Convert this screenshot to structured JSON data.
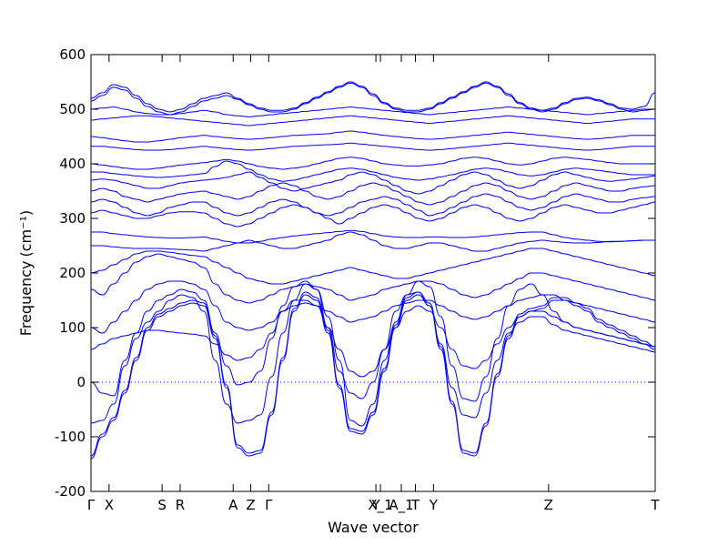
{
  "chart_data": {
    "type": "line",
    "xlabel": "Wave vector",
    "ylabel": "Frequency",
    "ylabel_unit": "(cm⁻¹)",
    "ylim": [
      -200,
      600
    ],
    "yticks": [
      -200,
      -100,
      0,
      100,
      200,
      300,
      400,
      500,
      600
    ],
    "xlim": [
      0,
      1
    ],
    "high_symmetry_points": [
      {
        "label": "Γ",
        "x": 0.0
      },
      {
        "label": "X",
        "x": 0.032
      },
      {
        "label": "S",
        "x": 0.126
      },
      {
        "label": "R",
        "x": 0.158
      },
      {
        "label": "A",
        "x": 0.252
      },
      {
        "label": "Z",
        "x": 0.283
      },
      {
        "label": "Γ",
        "x": 0.315
      },
      {
        "label": "Y",
        "x": 0.505
      },
      {
        "label": "X_1",
        "x": 0.513
      },
      {
        "label": "A_1",
        "x": 0.55
      },
      {
        "label": "T",
        "x": 0.575
      },
      {
        "label": "Y",
        "x": 0.607
      },
      {
        "label": "Z",
        "x": 0.811
      },
      {
        "label": "T",
        "x": 1.0
      }
    ],
    "zero_line": 0,
    "series": [
      {
        "values": [
          -140,
          -100,
          -70,
          -20,
          40,
          95,
          120,
          130,
          140,
          145,
          140,
          80,
          -10,
          -120,
          -135,
          -130,
          -60,
          40,
          130,
          160,
          150,
          90,
          -10,
          -90,
          -95,
          -60,
          20,
          100,
          150,
          160,
          140,
          60,
          -40,
          -130,
          -135,
          -80,
          10,
          80,
          120,
          130,
          135,
          150,
          150,
          140,
          130,
          110,
          100,
          90,
          80,
          70,
          60
        ]
      },
      {
        "values": [
          -135,
          -95,
          -65,
          -15,
          45,
          100,
          125,
          135,
          145,
          150,
          145,
          85,
          -5,
          -115,
          -130,
          -125,
          -55,
          45,
          135,
          165,
          155,
          95,
          -5,
          -85,
          -90,
          -55,
          25,
          105,
          155,
          165,
          145,
          65,
          -35,
          -125,
          -130,
          -75,
          15,
          85,
          125,
          135,
          140,
          155,
          155,
          145,
          135,
          115,
          105,
          95,
          85,
          75,
          65
        ]
      },
      {
        "values": [
          -75,
          -70,
          -40,
          30,
          80,
          110,
          130,
          150,
          160,
          155,
          130,
          40,
          -40,
          -75,
          -70,
          -60,
          10,
          90,
          150,
          180,
          170,
          100,
          20,
          -20,
          -30,
          0,
          60,
          130,
          160,
          165,
          140,
          70,
          -10,
          -60,
          -65,
          -20,
          40,
          90,
          110,
          120,
          120,
          105,
          95,
          90,
          85,
          80,
          75,
          70,
          65,
          60,
          55
        ]
      },
      {
        "values": [
          0,
          -20,
          -25,
          40,
          90,
          130,
          150,
          160,
          170,
          165,
          150,
          90,
          30,
          -5,
          0,
          20,
          80,
          140,
          175,
          185,
          170,
          120,
          40,
          -70,
          -80,
          -40,
          40,
          110,
          160,
          185,
          175,
          120,
          30,
          -30,
          -35,
          10,
          80,
          140,
          170,
          180,
          160,
          130,
          110,
          100,
          95,
          90,
          85,
          80,
          75,
          70,
          65
        ]
      },
      {
        "values": [
          60,
          70,
          80,
          85,
          90,
          95,
          95,
          92,
          90,
          88,
          85,
          70,
          50,
          40,
          45,
          60,
          90,
          130,
          150,
          150,
          140,
          100,
          60,
          20,
          10,
          20,
          60,
          100,
          130,
          140,
          130,
          100,
          60,
          30,
          25,
          40,
          70,
          100,
          120,
          130,
          130,
          120,
          110,
          100,
          95,
          90,
          85,
          80,
          75,
          70,
          65
        ]
      },
      {
        "values": [
          100,
          90,
          110,
          130,
          150,
          170,
          180,
          185,
          185,
          180,
          170,
          140,
          110,
          100,
          95,
          100,
          110,
          130,
          140,
          145,
          140,
          130,
          120,
          110,
          115,
          120,
          130,
          140,
          145,
          150,
          150,
          140,
          130,
          120,
          115,
          120,
          130,
          140,
          150,
          155,
          160,
          160,
          150,
          145,
          140,
          135,
          130,
          125,
          120,
          115,
          110
        ]
      },
      {
        "values": [
          170,
          160,
          180,
          200,
          220,
          230,
          235,
          230,
          225,
          220,
          210,
          180,
          160,
          150,
          145,
          150,
          160,
          170,
          175,
          180,
          175,
          170,
          160,
          150,
          155,
          160,
          170,
          175,
          180,
          185,
          185,
          180,
          170,
          160,
          155,
          160,
          170,
          180,
          190,
          200,
          200,
          195,
          190,
          185,
          180,
          175,
          170,
          165,
          160,
          155,
          150
        ]
      },
      {
        "values": [
          200,
          205,
          215,
          225,
          235,
          240,
          240,
          238,
          235,
          232,
          230,
          220,
          210,
          200,
          190,
          185,
          180,
          180,
          185,
          190,
          195,
          200,
          205,
          210,
          205,
          200,
          195,
          190,
          190,
          195,
          200,
          205,
          210,
          215,
          220,
          225,
          230,
          235,
          240,
          245,
          245,
          240,
          235,
          230,
          225,
          220,
          215,
          210,
          205,
          200,
          195
        ]
      },
      {
        "values": [
          250,
          250,
          248,
          246,
          245,
          245,
          245,
          244,
          243,
          242,
          240,
          245,
          250,
          255,
          260,
          255,
          250,
          245,
          245,
          250,
          255,
          260,
          270,
          275,
          270,
          260,
          250,
          245,
          245,
          250,
          255,
          255,
          250,
          245,
          240,
          240,
          245,
          250,
          255,
          258,
          260,
          258,
          256,
          255,
          255,
          256,
          258,
          258,
          259,
          260,
          260
        ]
      },
      {
        "values": [
          275,
          275,
          272,
          270,
          268,
          266,
          265,
          264,
          264,
          265,
          266,
          262,
          258,
          255,
          255,
          258,
          262,
          265,
          268,
          270,
          272,
          274,
          276,
          278,
          276,
          272,
          268,
          266,
          265,
          265,
          266,
          266,
          265,
          265,
          266,
          268,
          270,
          272,
          274,
          275,
          275,
          270,
          265,
          262,
          260,
          258,
          257,
          258,
          259,
          260,
          260
        ]
      },
      {
        "values": [
          310,
          315,
          310,
          305,
          300,
          300,
          305,
          310,
          312,
          312,
          310,
          300,
          290,
          285,
          290,
          300,
          310,
          320,
          325,
          320,
          310,
          300,
          290,
          300,
          310,
          320,
          325,
          320,
          310,
          300,
          295,
          300,
          310,
          320,
          325,
          320,
          310,
          300,
          295,
          300,
          310,
          320,
          325,
          320,
          315,
          310,
          310,
          315,
          320,
          325,
          330
        ]
      },
      {
        "values": [
          330,
          335,
          330,
          320,
          310,
          305,
          310,
          320,
          325,
          330,
          330,
          320,
          310,
          305,
          310,
          320,
          330,
          335,
          330,
          320,
          310,
          305,
          310,
          320,
          330,
          335,
          340,
          335,
          325,
          315,
          305,
          310,
          320,
          330,
          340,
          345,
          340,
          330,
          320,
          315,
          320,
          330,
          340,
          345,
          340,
          335,
          330,
          330,
          335,
          338,
          340
        ]
      },
      {
        "values": [
          350,
          355,
          350,
          340,
          335,
          330,
          335,
          340,
          345,
          348,
          350,
          345,
          340,
          335,
          340,
          350,
          360,
          365,
          360,
          350,
          340,
          335,
          340,
          350,
          360,
          365,
          360,
          350,
          340,
          330,
          325,
          330,
          340,
          350,
          360,
          365,
          360,
          350,
          340,
          335,
          340,
          350,
          360,
          365,
          360,
          355,
          350,
          350,
          355,
          358,
          360
        ]
      },
      {
        "values": [
          370,
          372,
          370,
          365,
          360,
          355,
          355,
          360,
          365,
          368,
          370,
          372,
          375,
          380,
          385,
          375,
          365,
          355,
          350,
          355,
          360,
          365,
          370,
          380,
          385,
          380,
          370,
          360,
          350,
          345,
          350,
          360,
          370,
          380,
          385,
          380,
          370,
          360,
          355,
          360,
          370,
          380,
          385,
          380,
          375,
          370,
          368,
          370,
          372,
          375,
          378
        ]
      },
      {
        "values": [
          385,
          385,
          382,
          380,
          378,
          376,
          375,
          376,
          378,
          380,
          382,
          395,
          405,
          400,
          390,
          380,
          372,
          368,
          370,
          375,
          380,
          385,
          390,
          392,
          390,
          385,
          380,
          375,
          372,
          370,
          372,
          376,
          380,
          385,
          390,
          392,
          390,
          385,
          380,
          378,
          380,
          385,
          390,
          392,
          390,
          388,
          385,
          382,
          380,
          380,
          380
        ]
      },
      {
        "values": [
          400,
          398,
          395,
          392,
          390,
          390,
          392,
          395,
          398,
          400,
          402,
          405,
          408,
          405,
          400,
          395,
          392,
          390,
          392,
          395,
          400,
          405,
          410,
          412,
          410,
          405,
          400,
          398,
          396,
          396,
          398,
          400,
          405,
          410,
          412,
          410,
          405,
          400,
          398,
          400,
          405,
          410,
          412,
          410,
          408,
          405,
          402,
          400,
          400,
          400,
          400
        ]
      },
      {
        "values": [
          432,
          432,
          430,
          428,
          426,
          425,
          425,
          426,
          428,
          430,
          432,
          430,
          428,
          426,
          425,
          426,
          428,
          430,
          432,
          433,
          434,
          435,
          436,
          438,
          436,
          434,
          432,
          430,
          428,
          426,
          425,
          426,
          428,
          430,
          432,
          434,
          436,
          438,
          436,
          434,
          432,
          430,
          428,
          426,
          425,
          426,
          428,
          430,
          432,
          432,
          432
        ]
      },
      {
        "values": [
          450,
          448,
          445,
          442,
          440,
          440,
          442,
          445,
          448,
          450,
          452,
          450,
          448,
          446,
          445,
          446,
          448,
          450,
          452,
          453,
          454,
          455,
          458,
          460,
          458,
          455,
          452,
          450,
          448,
          446,
          445,
          446,
          448,
          450,
          452,
          454,
          456,
          458,
          456,
          454,
          452,
          450,
          448,
          446,
          445,
          446,
          448,
          450,
          452,
          452,
          452
        ]
      },
      {
        "values": [
          480,
          482,
          484,
          486,
          488,
          488,
          486,
          484,
          482,
          480,
          478,
          476,
          474,
          472,
          470,
          472,
          474,
          476,
          478,
          480,
          482,
          484,
          486,
          488,
          486,
          484,
          482,
          480,
          478,
          476,
          474,
          476,
          478,
          480,
          482,
          484,
          486,
          488,
          486,
          484,
          482,
          480,
          478,
          476,
          474,
          476,
          478,
          480,
          482,
          482,
          482
        ]
      },
      {
        "values": [
          500,
          502,
          504,
          500,
          495,
          492,
          490,
          490,
          492,
          495,
          498,
          495,
          490,
          488,
          486,
          488,
          490,
          492,
          494,
          496,
          498,
          500,
          502,
          504,
          502,
          500,
          498,
          496,
          494,
          492,
          490,
          492,
          494,
          496,
          498,
          500,
          502,
          504,
          502,
          500,
          498,
          496,
          494,
          492,
          490,
          492,
          494,
          496,
          498,
          500,
          500
        ]
      },
      {
        "values": [
          515,
          525,
          540,
          535,
          520,
          505,
          495,
          490,
          495,
          505,
          515,
          520,
          525,
          518,
          508,
          500,
          495,
          495,
          500,
          510,
          520,
          530,
          540,
          548,
          540,
          525,
          510,
          500,
          495,
          495,
          500,
          510,
          520,
          530,
          540,
          548,
          540,
          525,
          510,
          500,
          495,
          500,
          510,
          518,
          520,
          515,
          508,
          500,
          495,
          498,
          500
        ]
      },
      {
        "values": [
          520,
          530,
          545,
          540,
          525,
          510,
          500,
          495,
          500,
          510,
          520,
          525,
          530,
          520,
          510,
          502,
          498,
          498,
          502,
          512,
          522,
          532,
          542,
          550,
          542,
          528,
          512,
          502,
          498,
          498,
          502,
          512,
          522,
          532,
          542,
          550,
          542,
          528,
          512,
          502,
          498,
          502,
          512,
          520,
          522,
          517,
          510,
          502,
          500,
          505,
          530
        ]
      }
    ]
  }
}
